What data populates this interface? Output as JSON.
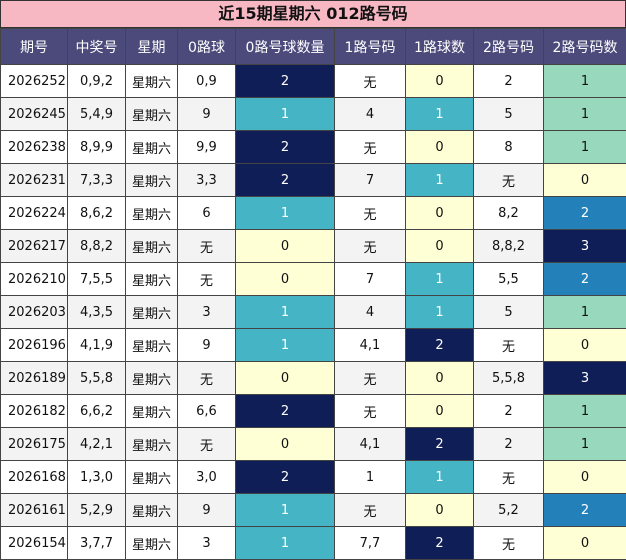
{
  "title": "近15期星期六 012路号码",
  "headers": [
    "期号",
    "中奖号",
    "星期",
    "0路球",
    "0路号球数量",
    "1路号码",
    "1路球数",
    "2路号码",
    "2路号码数"
  ],
  "colors": {
    "dark": "#0f1e56",
    "teal": "#45b5c6",
    "mint": "#98d8bc",
    "blue": "#2380b8",
    "cream": "#ffffd6",
    "header": "#4b4a7b",
    "title_bg": "#f7b8c4"
  },
  "rows": [
    {
      "issue": "2026252",
      "num": "0,9,2",
      "day": "星期六",
      "r0": "0,9",
      "c0": "2",
      "r1": "无",
      "c1": "0",
      "r2": "2",
      "c2": "1"
    },
    {
      "issue": "2026245",
      "num": "5,4,9",
      "day": "星期六",
      "r0": "9",
      "c0": "1",
      "r1": "4",
      "c1": "1",
      "r2": "5",
      "c2": "1"
    },
    {
      "issue": "2026238",
      "num": "8,9,9",
      "day": "星期六",
      "r0": "9,9",
      "c0": "2",
      "r1": "无",
      "c1": "0",
      "r2": "8",
      "c2": "1"
    },
    {
      "issue": "2026231",
      "num": "7,3,3",
      "day": "星期六",
      "r0": "3,3",
      "c0": "2",
      "r1": "7",
      "c1": "1",
      "r2": "无",
      "c2": "0"
    },
    {
      "issue": "2026224",
      "num": "8,6,2",
      "day": "星期六",
      "r0": "6",
      "c0": "1",
      "r1": "无",
      "c1": "0",
      "r2": "8,2",
      "c2": "2"
    },
    {
      "issue": "2026217",
      "num": "8,8,2",
      "day": "星期六",
      "r0": "无",
      "c0": "0",
      "r1": "无",
      "c1": "0",
      "r2": "8,8,2",
      "c2": "3"
    },
    {
      "issue": "2026210",
      "num": "7,5,5",
      "day": "星期六",
      "r0": "无",
      "c0": "0",
      "r1": "7",
      "c1": "1",
      "r2": "5,5",
      "c2": "2"
    },
    {
      "issue": "2026203",
      "num": "4,3,5",
      "day": "星期六",
      "r0": "3",
      "c0": "1",
      "r1": "4",
      "c1": "1",
      "r2": "5",
      "c2": "1"
    },
    {
      "issue": "2026196",
      "num": "4,1,9",
      "day": "星期六",
      "r0": "9",
      "c0": "1",
      "r1": "4,1",
      "c1": "2",
      "r2": "无",
      "c2": "0"
    },
    {
      "issue": "2026189",
      "num": "5,5,8",
      "day": "星期六",
      "r0": "无",
      "c0": "0",
      "r1": "无",
      "c1": "0",
      "r2": "5,5,8",
      "c2": "3"
    },
    {
      "issue": "2026182",
      "num": "6,6,2",
      "day": "星期六",
      "r0": "6,6",
      "c0": "2",
      "r1": "无",
      "c1": "0",
      "r2": "2",
      "c2": "1"
    },
    {
      "issue": "2026175",
      "num": "4,2,1",
      "day": "星期六",
      "r0": "无",
      "c0": "0",
      "r1": "4,1",
      "c1": "2",
      "r2": "2",
      "c2": "1"
    },
    {
      "issue": "2026168",
      "num": "1,3,0",
      "day": "星期六",
      "r0": "3,0",
      "c0": "2",
      "r1": "1",
      "c1": "1",
      "r2": "无",
      "c2": "0"
    },
    {
      "issue": "2026161",
      "num": "5,2,9",
      "day": "星期六",
      "r0": "9",
      "c0": "1",
      "r1": "无",
      "c1": "0",
      "r2": "5,2",
      "c2": "2"
    },
    {
      "issue": "2026154",
      "num": "3,7,7",
      "day": "星期六",
      "r0": "3",
      "c0": "1",
      "r1": "7,7",
      "c1": "2",
      "r2": "无",
      "c2": "0"
    }
  ]
}
